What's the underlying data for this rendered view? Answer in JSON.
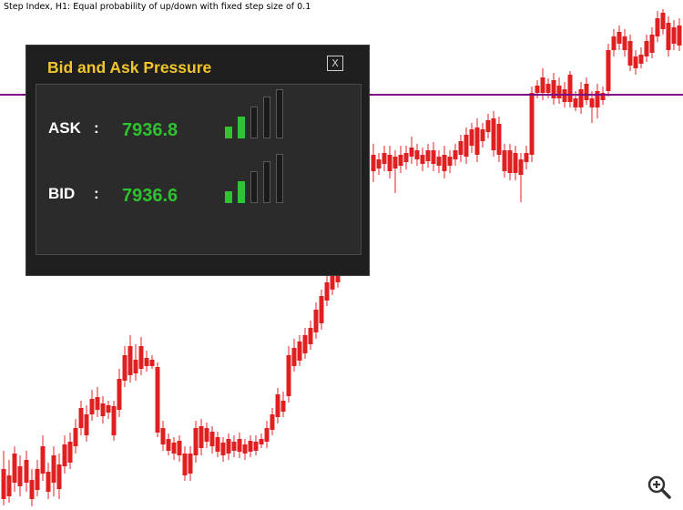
{
  "chart": {
    "title": "Step Index, H1:  Equal probability of up/down with fixed step size of 0.1",
    "colors": {
      "up": "#1aa31a",
      "down": "#e02020",
      "wick": "#1a7a1a",
      "level_line": "#800080"
    }
  },
  "panel": {
    "title": "Bid and Ask Pressure",
    "close_label": "X",
    "ask": {
      "label": "ASK",
      "separator": ":",
      "value": "7936.8",
      "pressure_level": 2,
      "pressure_max": 5
    },
    "bid": {
      "label": "BID",
      "separator": ":",
      "value": "7936.6",
      "pressure_level": 2,
      "pressure_max": 5
    },
    "colors": {
      "title": "#f2c62b",
      "value": "#2ec22e",
      "meter_on": "#33c233"
    }
  },
  "zoom": {
    "icon": "zoom-in-icon"
  }
}
